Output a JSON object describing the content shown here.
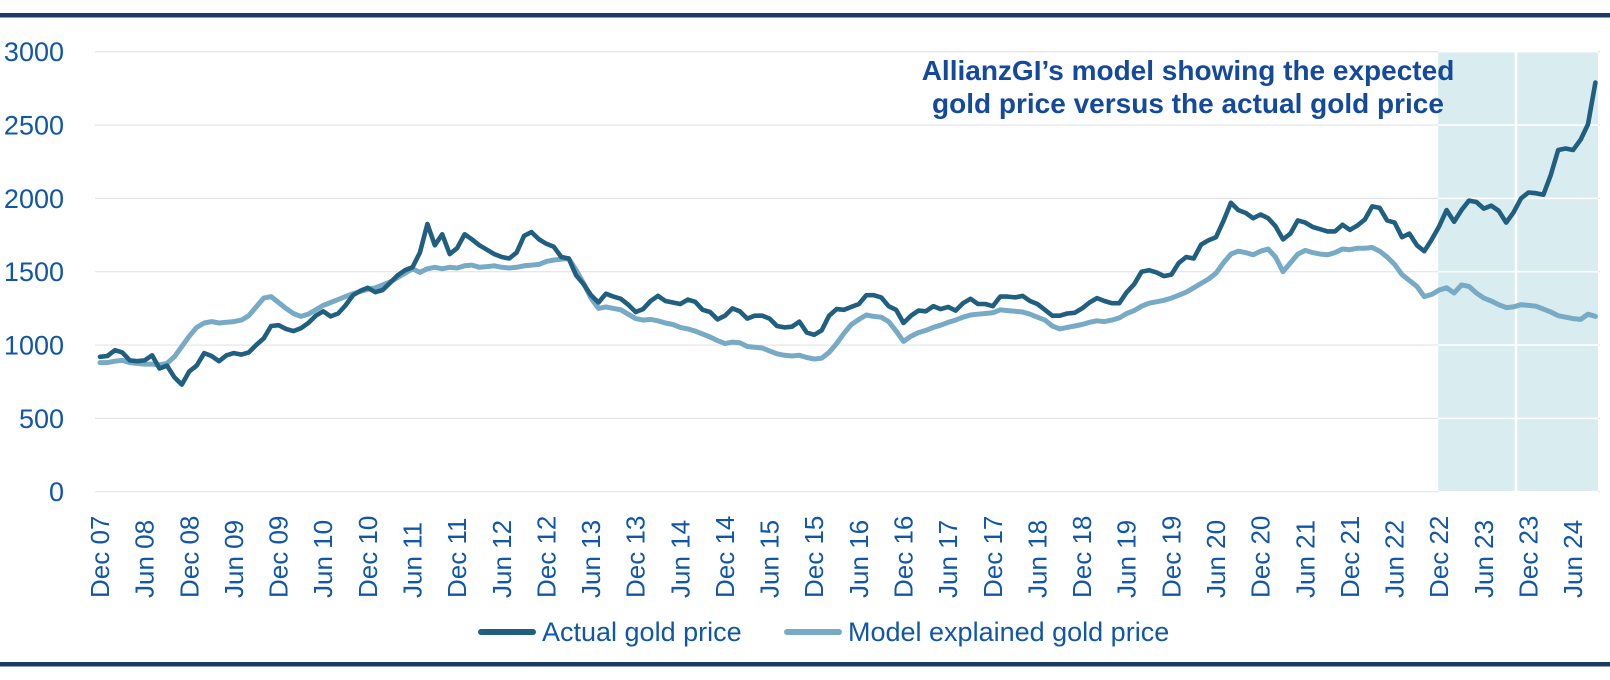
{
  "title": {
    "line1": "AllianzGI’s model showing the expected",
    "line2": "gold price versus the actual gold price"
  },
  "legend": {
    "actual": {
      "label": "Actual gold price"
    },
    "model": {
      "label": "Model explained gold price"
    }
  },
  "colors": {
    "navy_rule": "#1b3a66",
    "axis_text": "#1156a7",
    "title_text": "#14499c",
    "actual_line": "#205f80",
    "model_line": "#77aac5",
    "highlight_bg": "#d9ecf0",
    "gridline": "#e4e4e6"
  },
  "chart_data": {
    "type": "line",
    "title": "AllianzGI’s model showing the expected gold price versus the actual gold price",
    "x_unit": "monthly, Dec 2007 – Sep 2024",
    "x_tick_labels": [
      "Dec 07",
      "Jun 08",
      "Dec 08",
      "Jun 09",
      "Dec 09",
      "Jun 10",
      "Dec 10",
      "Jun 11",
      "Dec 11",
      "Jun 12",
      "Dec 12",
      "Jun 13",
      "Dec 13",
      "Jun 14",
      "Dec 14",
      "Jun 15",
      "Dec 15",
      "Jun 16",
      "Dec 16",
      "Jun 17",
      "Dec 17",
      "Jun 18",
      "Dec 18",
      "Jun 19",
      "Dec 19",
      "Jun 20",
      "Dec 20",
      "Jun 21",
      "Dec 21",
      "Jun 22",
      "Dec 22",
      "Jun 23",
      "Dec 23",
      "Jun 24"
    ],
    "x_tick_every_n_months": 6,
    "y_ticks": [
      0,
      500,
      1000,
      1500,
      2000,
      2500,
      3000
    ],
    "ylim": [
      0,
      3000
    ],
    "grid": "horizontal",
    "legend_position": "bottom",
    "highlight_region": {
      "starts_at_label": "Dec 22",
      "ends_at": "right edge of plot",
      "white_divider_between": "Jun 23 and Dec 23"
    },
    "series": [
      {
        "name": "Actual gold price",
        "values": [
          920,
          925,
          965,
          950,
          895,
          890,
          895,
          930,
          840,
          860,
          780,
          730,
          820,
          860,
          945,
          925,
          890,
          930,
          945,
          935,
          950,
          1000,
          1045,
          1130,
          1135,
          1110,
          1095,
          1115,
          1150,
          1200,
          1230,
          1195,
          1215,
          1270,
          1340,
          1370,
          1390,
          1360,
          1375,
          1425,
          1475,
          1510,
          1530,
          1630,
          1825,
          1680,
          1755,
          1620,
          1660,
          1755,
          1720,
          1680,
          1650,
          1620,
          1600,
          1590,
          1630,
          1745,
          1770,
          1720,
          1690,
          1670,
          1600,
          1590,
          1475,
          1415,
          1340,
          1290,
          1350,
          1330,
          1315,
          1275,
          1225,
          1245,
          1300,
          1335,
          1300,
          1290,
          1280,
          1310,
          1295,
          1240,
          1225,
          1175,
          1200,
          1250,
          1230,
          1180,
          1200,
          1200,
          1180,
          1130,
          1120,
          1125,
          1160,
          1085,
          1070,
          1100,
          1200,
          1245,
          1240,
          1260,
          1280,
          1340,
          1340,
          1325,
          1265,
          1240,
          1150,
          1200,
          1235,
          1230,
          1265,
          1245,
          1260,
          1235,
          1285,
          1315,
          1280,
          1280,
          1265,
          1330,
          1330,
          1325,
          1335,
          1300,
          1280,
          1240,
          1200,
          1200,
          1215,
          1220,
          1250,
          1290,
          1320,
          1300,
          1285,
          1285,
          1360,
          1415,
          1500,
          1510,
          1495,
          1470,
          1480,
          1560,
          1600,
          1590,
          1685,
          1715,
          1735,
          1845,
          1970,
          1920,
          1900,
          1865,
          1890,
          1865,
          1810,
          1720,
          1760,
          1850,
          1835,
          1805,
          1790,
          1775,
          1775,
          1820,
          1785,
          1815,
          1855,
          1945,
          1935,
          1850,
          1835,
          1735,
          1760,
          1680,
          1640,
          1720,
          1810,
          1920,
          1840,
          1920,
          1985,
          1975,
          1930,
          1950,
          1915,
          1835,
          1905,
          2000,
          2040,
          2035,
          2025,
          2160,
          2330,
          2340,
          2330,
          2400,
          2505,
          2790
        ]
      },
      {
        "name": "Model explained gold price",
        "values": [
          880,
          880,
          890,
          895,
          880,
          875,
          870,
          870,
          865,
          875,
          920,
          990,
          1060,
          1120,
          1150,
          1160,
          1150,
          1155,
          1160,
          1170,
          1200,
          1260,
          1320,
          1330,
          1290,
          1250,
          1215,
          1195,
          1210,
          1240,
          1270,
          1290,
          1310,
          1330,
          1350,
          1365,
          1380,
          1390,
          1410,
          1430,
          1460,
          1490,
          1520,
          1495,
          1520,
          1530,
          1520,
          1530,
          1525,
          1540,
          1545,
          1530,
          1535,
          1540,
          1530,
          1525,
          1530,
          1540,
          1545,
          1550,
          1570,
          1580,
          1585,
          1590,
          1510,
          1420,
          1320,
          1250,
          1260,
          1250,
          1240,
          1210,
          1180,
          1170,
          1175,
          1165,
          1150,
          1140,
          1120,
          1110,
          1095,
          1075,
          1055,
          1030,
          1010,
          1020,
          1015,
          990,
          985,
          980,
          960,
          940,
          930,
          925,
          930,
          915,
          905,
          910,
          950,
          1010,
          1080,
          1140,
          1175,
          1205,
          1195,
          1190,
          1160,
          1095,
          1025,
          1060,
          1085,
          1100,
          1120,
          1135,
          1155,
          1170,
          1190,
          1205,
          1210,
          1215,
          1220,
          1240,
          1235,
          1230,
          1225,
          1210,
          1190,
          1170,
          1130,
          1110,
          1120,
          1130,
          1140,
          1155,
          1165,
          1160,
          1170,
          1185,
          1215,
          1235,
          1265,
          1285,
          1295,
          1305,
          1320,
          1340,
          1360,
          1390,
          1420,
          1450,
          1490,
          1560,
          1620,
          1640,
          1630,
          1615,
          1640,
          1655,
          1600,
          1500,
          1560,
          1620,
          1645,
          1630,
          1620,
          1615,
          1630,
          1655,
          1650,
          1660,
          1660,
          1665,
          1640,
          1600,
          1550,
          1480,
          1440,
          1400,
          1330,
          1345,
          1375,
          1390,
          1355,
          1410,
          1400,
          1355,
          1320,
          1300,
          1275,
          1255,
          1260,
          1275,
          1270,
          1265,
          1245,
          1225,
          1200,
          1190,
          1180,
          1175,
          1210,
          1195
        ]
      }
    ]
  }
}
